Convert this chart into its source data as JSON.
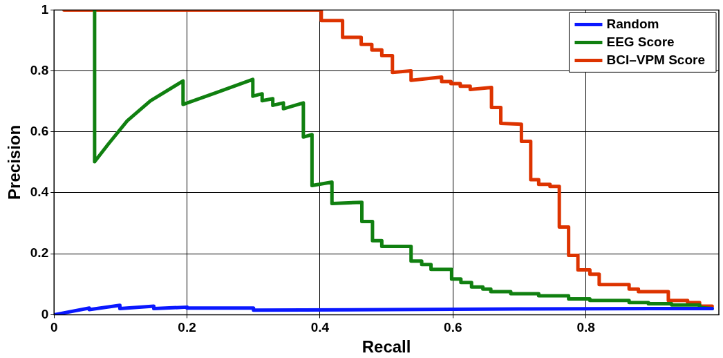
{
  "chart_data": {
    "type": "line",
    "xlabel": "Recall",
    "ylabel": "Precision",
    "xlim": [
      0,
      1
    ],
    "ylim": [
      0,
      1
    ],
    "xticks": [
      0,
      0.2,
      0.4,
      0.6,
      0.8
    ],
    "yticks": [
      0,
      0.2,
      0.4,
      0.6,
      0.8,
      1
    ],
    "grid": true,
    "legend": "top right",
    "marker": "none",
    "line_style": "solid",
    "series": [
      {
        "name": "Random",
        "color": "#0a18ff",
        "x": [
          0,
          0.053,
          0.053,
          0.099,
          0.099,
          0.15,
          0.15,
          0.2,
          0.2,
          0.3,
          0.3,
          0.5,
          0.7,
          0.9,
          0.99
        ],
        "values": [
          0,
          0.022,
          0.017,
          0.031,
          0.02,
          0.028,
          0.02,
          0.025,
          0.022,
          0.022,
          0.015,
          0.017,
          0.019,
          0.02,
          0.02
        ]
      },
      {
        "name": "EEG Score",
        "color": "#108010",
        "x": [
          0.061,
          0.061,
          0.082,
          0.11,
          0.145,
          0.194,
          0.194,
          0.243,
          0.299,
          0.299,
          0.313,
          0.313,
          0.329,
          0.329,
          0.345,
          0.345,
          0.375,
          0.375,
          0.388,
          0.388,
          0.418,
          0.418,
          0.463,
          0.463,
          0.479,
          0.479,
          0.493,
          0.493,
          0.537,
          0.537,
          0.553,
          0.553,
          0.567,
          0.567,
          0.598,
          0.598,
          0.612,
          0.612,
          0.628,
          0.628,
          0.645,
          0.645,
          0.657,
          0.657,
          0.687,
          0.687,
          0.729,
          0.729,
          0.774,
          0.774,
          0.806,
          0.806,
          0.865,
          0.865,
          0.894,
          0.894,
          0.929,
          0.929,
          0.971,
          0.971,
          0.99
        ],
        "values": [
          1,
          0.502,
          0.561,
          0.636,
          0.702,
          0.767,
          0.69,
          0.728,
          0.772,
          0.717,
          0.725,
          0.702,
          0.709,
          0.687,
          0.695,
          0.676,
          0.695,
          0.583,
          0.591,
          0.424,
          0.435,
          0.365,
          0.369,
          0.306,
          0.306,
          0.243,
          0.243,
          0.224,
          0.224,
          0.176,
          0.176,
          0.165,
          0.165,
          0.149,
          0.149,
          0.117,
          0.117,
          0.106,
          0.106,
          0.091,
          0.091,
          0.084,
          0.084,
          0.076,
          0.076,
          0.069,
          0.069,
          0.062,
          0.062,
          0.052,
          0.052,
          0.047,
          0.047,
          0.04,
          0.04,
          0.036,
          0.036,
          0.032,
          0.032,
          0.024,
          0.02
        ]
      },
      {
        "name": "BCI–VPM Score",
        "color": "#dd3300",
        "x": [
          0.015,
          0.402,
          0.402,
          0.434,
          0.434,
          0.462,
          0.462,
          0.478,
          0.478,
          0.493,
          0.493,
          0.509,
          0.509,
          0.537,
          0.537,
          0.583,
          0.583,
          0.597,
          0.597,
          0.611,
          0.611,
          0.626,
          0.626,
          0.658,
          0.658,
          0.672,
          0.672,
          0.703,
          0.703,
          0.717,
          0.717,
          0.729,
          0.729,
          0.746,
          0.746,
          0.76,
          0.76,
          0.774,
          0.774,
          0.788,
          0.788,
          0.806,
          0.806,
          0.82,
          0.82,
          0.865,
          0.865,
          0.879,
          0.879,
          0.924,
          0.924,
          0.953,
          0.953,
          0.971,
          0.971,
          0.99
        ],
        "values": [
          1,
          1,
          0.965,
          0.965,
          0.91,
          0.91,
          0.887,
          0.887,
          0.869,
          0.869,
          0.85,
          0.85,
          0.795,
          0.8,
          0.769,
          0.78,
          0.765,
          0.765,
          0.758,
          0.758,
          0.75,
          0.75,
          0.739,
          0.746,
          0.68,
          0.68,
          0.628,
          0.625,
          0.569,
          0.569,
          0.443,
          0.443,
          0.428,
          0.428,
          0.421,
          0.421,
          0.288,
          0.288,
          0.195,
          0.195,
          0.147,
          0.147,
          0.133,
          0.133,
          0.099,
          0.099,
          0.084,
          0.084,
          0.076,
          0.076,
          0.047,
          0.047,
          0.04,
          0.04,
          0.028,
          0.028
        ]
      }
    ]
  }
}
